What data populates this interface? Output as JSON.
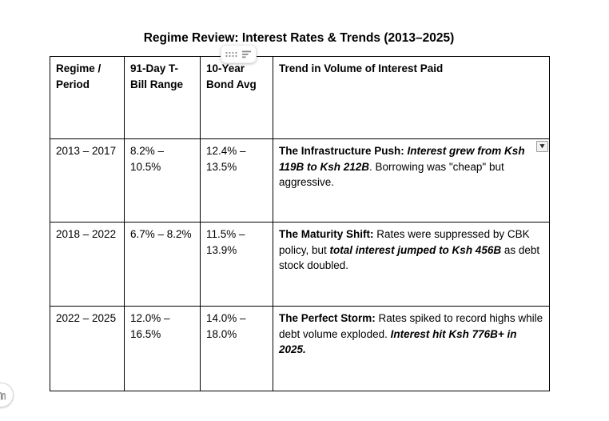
{
  "title": "Regime Review: Interest Rates & Trends (2013–2025)",
  "table": {
    "columns": [
      "Regime / Period",
      "91-Day T-Bill Range",
      "10-Year Bond Avg",
      "Trend in Volume of Interest Paid"
    ],
    "rows": [
      {
        "period": "2013 – 2017",
        "tbill_range": "8.2% – 10.5%",
        "bond_avg": "12.4% – 13.5%",
        "trend": [
          {
            "text": "The Infrastructure Push: ",
            "bold": true
          },
          {
            "text": "Interest grew from Ksh 119B to Ksh 212B",
            "bold": true,
            "italic": true
          },
          {
            "text": ". Borrowing was \"cheap\" but aggressive."
          }
        ]
      },
      {
        "period": "2018 – 2022",
        "tbill_range": "6.7% – 8.2%",
        "bond_avg": "11.5% – 13.9%",
        "trend": [
          {
            "text": "The Maturity Shift: ",
            "bold": true
          },
          {
            "text": "Rates were suppressed by CBK policy, but "
          },
          {
            "text": "total interest jumped to Ksh 456B",
            "bold": true,
            "italic": true
          },
          {
            "text": " as debt stock doubled."
          }
        ]
      },
      {
        "period": "2022 – 2025",
        "tbill_range": "12.0% – 16.5%",
        "bond_avg": "14.0% – 18.0%",
        "trend": [
          {
            "text": "The Perfect Storm: ",
            "bold": true
          },
          {
            "text": "Rates spiked to record highs while debt volume exploded. "
          },
          {
            "text": "Interest hit Ksh 776B+ in 2025.",
            "bold": true,
            "italic": true
          }
        ]
      }
    ]
  },
  "widgets": {
    "table_handle": {
      "icons": [
        "drag-dots-icon",
        "align-lines-icon"
      ]
    },
    "row_marker": {
      "glyph": "▼"
    },
    "corner_badge": {
      "icon": "hand-icon"
    }
  },
  "colors": {
    "text": "#000000",
    "table_border": "#000000",
    "pill_icon": "#8f8f8f",
    "marker_bg": "#f1f1f1",
    "marker_border": "#9a9a9a",
    "marker_glyph": "#2b2b2b"
  }
}
